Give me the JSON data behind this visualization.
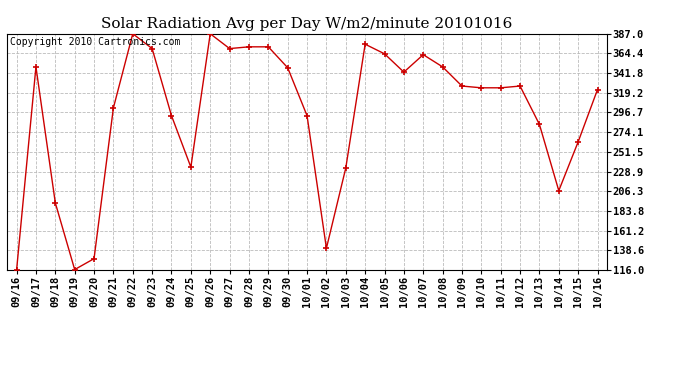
{
  "title": "Solar Radiation Avg per Day W/m2/minute 20101016",
  "copyright": "Copyright 2010 Cartronics.com",
  "labels": [
    "09/16",
    "09/17",
    "09/18",
    "09/19",
    "09/20",
    "09/21",
    "09/22",
    "09/23",
    "09/24",
    "09/25",
    "09/26",
    "09/27",
    "09/28",
    "09/29",
    "09/30",
    "10/01",
    "10/02",
    "10/03",
    "10/04",
    "10/05",
    "10/06",
    "10/07",
    "10/08",
    "10/09",
    "10/10",
    "10/11",
    "10/12",
    "10/13",
    "10/14",
    "10/15",
    "10/16"
  ],
  "values": [
    116.0,
    349.0,
    193.0,
    116.5,
    129.0,
    302.0,
    387.0,
    370.0,
    293.0,
    234.0,
    387.0,
    370.0,
    372.0,
    372.0,
    348.0,
    293.0,
    141.0,
    233.0,
    375.0,
    364.0,
    343.0,
    363.0,
    349.0,
    327.0,
    325.0,
    325.0,
    327.0,
    283.0,
    207.0,
    263.0,
    323.0
  ],
  "line_color": "#cc0000",
  "marker_color": "#cc0000",
  "bg_color": "#ffffff",
  "grid_color": "#bbbbbb",
  "ylim": [
    116.0,
    387.0
  ],
  "yticks": [
    116.0,
    138.6,
    161.2,
    183.8,
    206.3,
    228.9,
    251.5,
    274.1,
    296.7,
    319.2,
    341.8,
    364.4,
    387.0
  ],
  "title_fontsize": 11,
  "copyright_fontsize": 7,
  "tick_fontsize": 7.5
}
